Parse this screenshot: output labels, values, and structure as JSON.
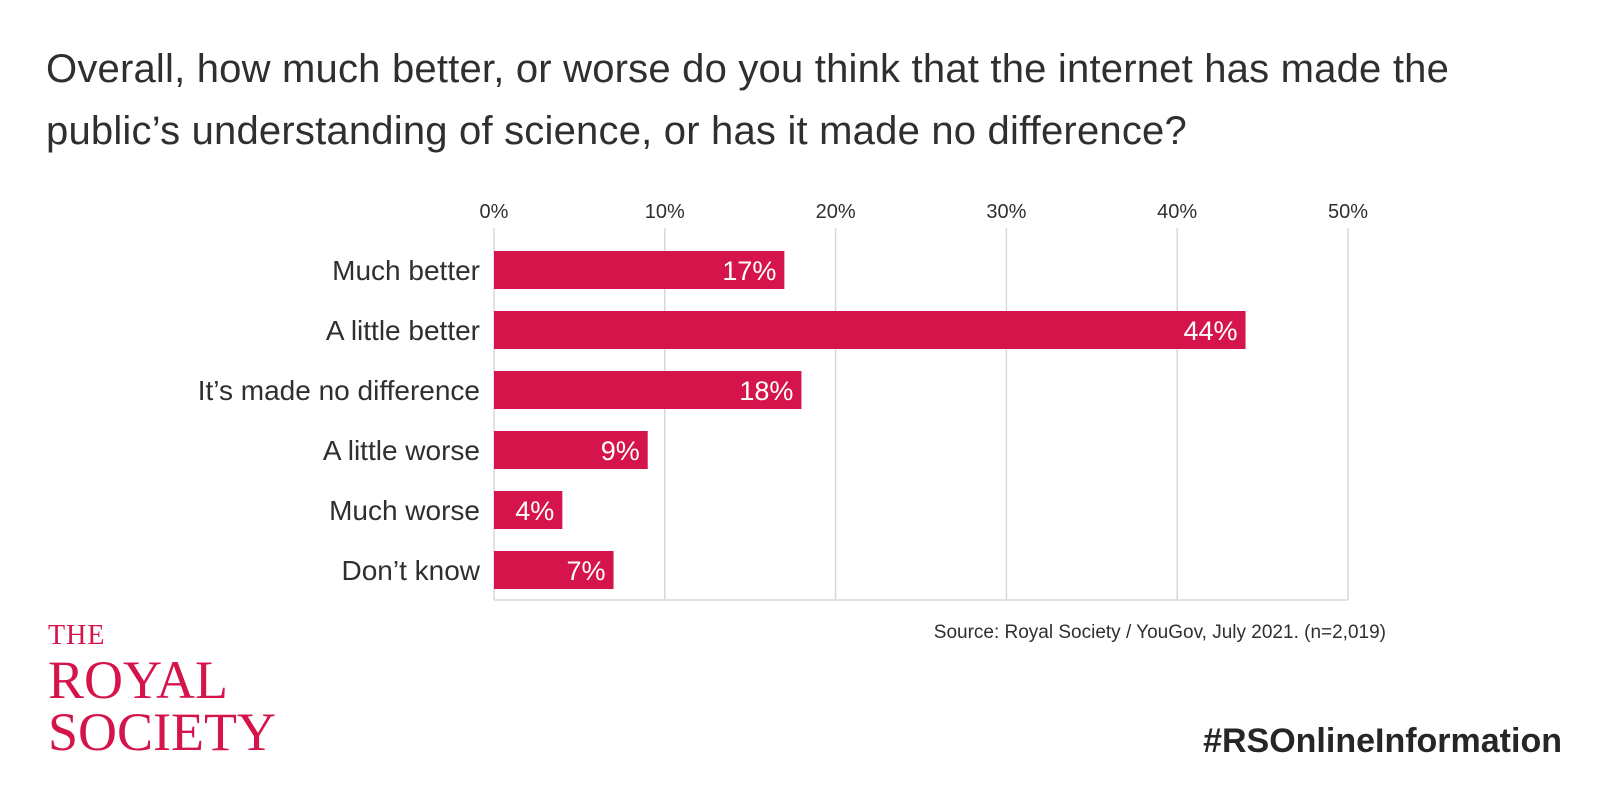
{
  "title": "Overall, how much better, or worse do you think that the internet has made the public’s understanding of science, or has it made no difference?",
  "source": "Source: Royal Society / YouGov, July 2021. (n=2,019)",
  "hashtag": "#RSOnlineInformation",
  "logo": {
    "line1": "THE",
    "line2": "ROYAL",
    "line3": "SOCIETY"
  },
  "colors": {
    "bar": "#d4144a",
    "grid": "#d9d9d9",
    "logo": "#d4144a"
  },
  "chart_data": {
    "type": "bar",
    "orientation": "horizontal",
    "categories": [
      "Much better",
      "A little better",
      "It’s made no difference",
      "A little worse",
      "Much worse",
      "Don’t know"
    ],
    "values": [
      17,
      44,
      18,
      9,
      4,
      7
    ],
    "data_labels": [
      "17%",
      "44%",
      "18%",
      "9%",
      "4%",
      "7%"
    ],
    "x_ticks": [
      0,
      10,
      20,
      30,
      40,
      50
    ],
    "x_tick_labels": [
      "0%",
      "10%",
      "20%",
      "30%",
      "40%",
      "50%"
    ],
    "xlim": [
      0,
      50
    ],
    "x_axis_position": "top",
    "grid": true,
    "legend": "none"
  }
}
